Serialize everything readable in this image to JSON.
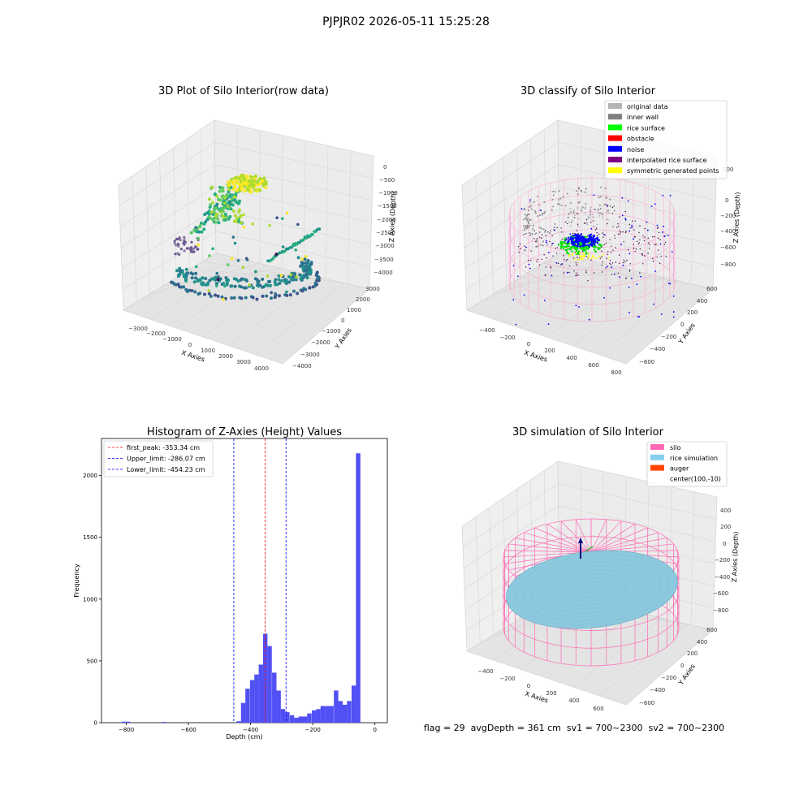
{
  "suptitle": "PJPJR02 2026-05-11 15:25:28",
  "colors": {
    "hist_bar": "#5050f5",
    "peak_line": "#ff0000",
    "limit_line": "#0000ff",
    "pane": "#f2f2f2"
  },
  "chart_data": [
    {
      "type": "scatter",
      "title": "3D Plot of Silo Interior(row data)",
      "xlabel": "X Axies",
      "ylabel": "Y Axies",
      "zlabel": "Z Axies (Depth)",
      "x_ticks": [
        "−3000",
        "−2000",
        "−1000",
        "0",
        "1000",
        "2000",
        "3000",
        "4000"
      ],
      "y_ticks": [
        "−4000",
        "−3000",
        "−2000",
        "−1000",
        "0",
        "1000",
        "2000",
        "3000"
      ],
      "z_ticks": [
        "−4000",
        "−3500",
        "−3000",
        "−2500",
        "−2000",
        "−1500",
        "−1000",
        "−500",
        "0"
      ],
      "xlim": [
        -3500,
        4500
      ],
      "ylim": [
        -4500,
        3500
      ],
      "zlim": [
        -4200,
        200
      ],
      "colormap": "viridis",
      "grid": true
    },
    {
      "type": "scatter",
      "title": "3D classify of Silo Interior",
      "xlabel": "X Axies",
      "ylabel": "Y Axies",
      "zlabel": "Z Axies (Depth)",
      "x_ticks": [
        "−400",
        "−200",
        "0",
        "200",
        "400",
        "600",
        "800"
      ],
      "y_ticks": [
        "−600",
        "−400",
        "−200",
        "0",
        "200",
        "400",
        "600"
      ],
      "z_ticks": [
        "−800",
        "−600",
        "−400",
        "−200",
        "0",
        "200"
      ],
      "legend_position": "upper-right",
      "legend": [
        {
          "label": "original data",
          "color": "#b4b4b4"
        },
        {
          "label": "inner wall",
          "color": "#808080"
        },
        {
          "label": "rice surface",
          "color": "#00ff00"
        },
        {
          "label": "obstacle",
          "color": "#ff0000"
        },
        {
          "label": "noise",
          "color": "#0000ff"
        },
        {
          "label": "interpolated rice surface",
          "color": "#800080"
        },
        {
          "label": "symmetric generated points",
          "color": "#ffff00"
        }
      ],
      "grid": true
    },
    {
      "type": "bar",
      "title": "Histogram of Z-Axies (Height) Values",
      "xlabel": "Depth (cm)",
      "ylabel": "Frequency",
      "xlim": [
        -880,
        40
      ],
      "ylim": [
        0,
        2300
      ],
      "x_ticks": [
        -800,
        -600,
        -400,
        -200,
        0
      ],
      "y_ticks": [
        0,
        500,
        1000,
        1500,
        2000
      ],
      "bin_width": 14.2,
      "bins": [
        {
          "x": -815,
          "value": 8
        },
        {
          "x": -801,
          "value": 8
        },
        {
          "x": -687,
          "value": 6
        },
        {
          "x": -445,
          "value": 12
        },
        {
          "x": -431,
          "value": 160
        },
        {
          "x": -417,
          "value": 275
        },
        {
          "x": -402,
          "value": 345
        },
        {
          "x": -388,
          "value": 390
        },
        {
          "x": -374,
          "value": 470
        },
        {
          "x": -360,
          "value": 720
        },
        {
          "x": -346,
          "value": 620
        },
        {
          "x": -331,
          "value": 405
        },
        {
          "x": -317,
          "value": 260
        },
        {
          "x": -303,
          "value": 110
        },
        {
          "x": -289,
          "value": 85
        },
        {
          "x": -274,
          "value": 60
        },
        {
          "x": -260,
          "value": 40
        },
        {
          "x": -246,
          "value": 50
        },
        {
          "x": -232,
          "value": 50
        },
        {
          "x": -218,
          "value": 75
        },
        {
          "x": -203,
          "value": 100
        },
        {
          "x": -189,
          "value": 110
        },
        {
          "x": -175,
          "value": 135
        },
        {
          "x": -161,
          "value": 135
        },
        {
          "x": -147,
          "value": 135
        },
        {
          "x": -132,
          "value": 260
        },
        {
          "x": -118,
          "value": 175
        },
        {
          "x": -104,
          "value": 145
        },
        {
          "x": -90,
          "value": 175
        },
        {
          "x": -75,
          "value": 300
        },
        {
          "x": -61,
          "value": 2180
        }
      ],
      "lines": [
        {
          "label": "first_peak: -353.34 cm",
          "x": -353.34,
          "color": "#ff0000"
        },
        {
          "label": "Upper_limit: -286.07 cm",
          "x": -286.07,
          "color": "#0000ff"
        },
        {
          "label": "Lower_limit: -454.23 cm",
          "x": -454.23,
          "color": "#0000ff"
        }
      ],
      "legend_position": "upper-left",
      "grid": false
    },
    {
      "type": "scatter",
      "title": "3D simulation of Silo Interior",
      "xlabel": "X Axies",
      "ylabel": "Y Axies",
      "zlabel": "Z Axies (Depth)",
      "x_ticks": [
        "−400",
        "−200",
        "0",
        "200",
        "400",
        "600"
      ],
      "y_ticks": [
        "−600",
        "−400",
        "−200",
        "0",
        "200",
        "400",
        "600"
      ],
      "z_ticks": [
        "−800",
        "−600",
        "−400",
        "−200",
        "0",
        "200",
        "400"
      ],
      "legend_position": "upper-right",
      "legend": [
        {
          "label": "silo",
          "color": "#ff69b4",
          "kind": "patch"
        },
        {
          "label": "rice simulation",
          "color": "#87ceeb",
          "kind": "patch"
        },
        {
          "label": "auger",
          "color": "#ff4500",
          "kind": "patch"
        },
        {
          "label": "center(100,-10)",
          "color": "none",
          "kind": "none"
        }
      ],
      "grid": true
    }
  ],
  "footer": "flag = 29  avgDepth = 361 cm  sv1 = 700~2300  sv2 = 700~2300"
}
